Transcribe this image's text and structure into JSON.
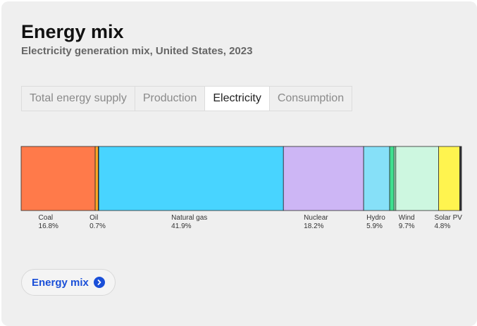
{
  "header": {
    "title": "Energy mix",
    "subtitle": "Electricity generation mix, United States, 2023"
  },
  "tabs": [
    {
      "label": "Total energy supply",
      "active": false
    },
    {
      "label": "Production",
      "active": false
    },
    {
      "label": "Electricity",
      "active": true
    },
    {
      "label": "Consumption",
      "active": false
    }
  ],
  "chart_data": {
    "type": "bar",
    "orientation": "horizontal-stacked",
    "unit": "%",
    "segments": [
      {
        "name": "Coal",
        "value": 16.8,
        "label": "16.8%",
        "color": "#ff7a4a"
      },
      {
        "name": "Oil",
        "value": 0.7,
        "label": "0.7%",
        "color": "#ffa726"
      },
      {
        "name": "",
        "value": 0.1,
        "label": "",
        "color": "#e8e04a"
      },
      {
        "name": "Natural gas",
        "value": 41.9,
        "label": "41.9%",
        "color": "#48d4ff"
      },
      {
        "name": "Nuclear",
        "value": 18.2,
        "label": "18.2%",
        "color": "#cdb6f5"
      },
      {
        "name": "Hydro",
        "value": 5.9,
        "label": "5.9%",
        "color": "#86e0f8"
      },
      {
        "name": "",
        "value": 1.0,
        "label": "",
        "color": "#3ee08f"
      },
      {
        "name": "",
        "value": 0.4,
        "label": "",
        "color": "#a8f0c8"
      },
      {
        "name": "Wind",
        "value": 9.7,
        "label": "9.7%",
        "color": "#cdf7e0"
      },
      {
        "name": "Solar PV",
        "value": 4.8,
        "label": "4.8%",
        "color": "#fff44f"
      },
      {
        "name": "",
        "value": 0.4,
        "label": "",
        "color": "#333333"
      }
    ]
  },
  "cta": {
    "label": "Energy mix",
    "icon": "chevron-right-icon",
    "color": "#1a4fd8"
  }
}
